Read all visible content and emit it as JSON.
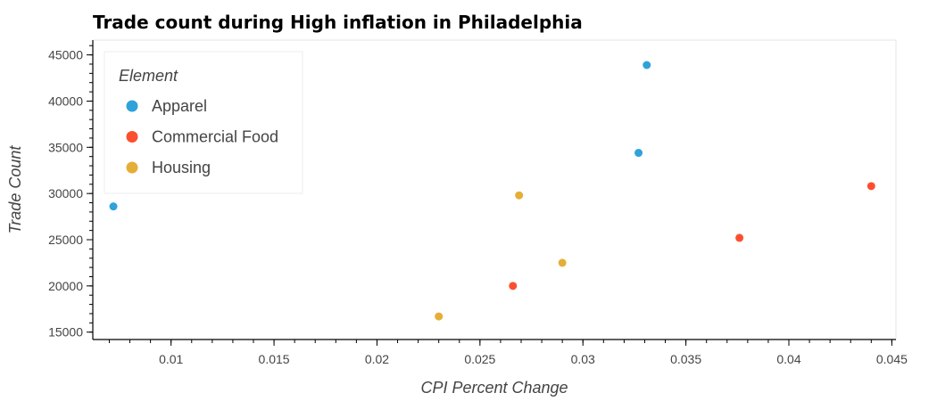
{
  "chart_data": {
    "type": "scatter",
    "title": "Trade count during High inflation in Philadelphia",
    "xlabel": "CPI Percent Change",
    "ylabel": "Trade Count",
    "xlim": [
      0.0062,
      0.0452
    ],
    "ylim": [
      14200,
      46600
    ],
    "x_ticks": [
      0.01,
      0.015,
      0.02,
      0.025,
      0.03,
      0.035,
      0.04,
      0.045
    ],
    "x_tick_labels": [
      "0.01",
      "0.015",
      "0.02",
      "0.025",
      "0.03",
      "0.035",
      "0.04",
      "0.045"
    ],
    "y_ticks": [
      15000,
      20000,
      25000,
      30000,
      35000,
      40000,
      45000
    ],
    "y_tick_labels": [
      "15000",
      "20000",
      "25000",
      "30000",
      "35000",
      "40000",
      "45000"
    ],
    "grid": false,
    "legend": {
      "title": "Element",
      "placement": "top-left"
    },
    "series": [
      {
        "name": "Apparel",
        "color": "#30a2da",
        "points": [
          [
            0.0072,
            28600
          ],
          [
            0.0327,
            34400
          ],
          [
            0.0331,
            43900
          ]
        ]
      },
      {
        "name": "Commercial Food",
        "color": "#fc4f30",
        "points": [
          [
            0.0266,
            20000
          ],
          [
            0.0376,
            25200
          ],
          [
            0.044,
            30800
          ]
        ]
      },
      {
        "name": "Housing",
        "color": "#e5ae38",
        "points": [
          [
            0.023,
            16700
          ],
          [
            0.0269,
            29800
          ],
          [
            0.029,
            22500
          ]
        ]
      }
    ]
  }
}
